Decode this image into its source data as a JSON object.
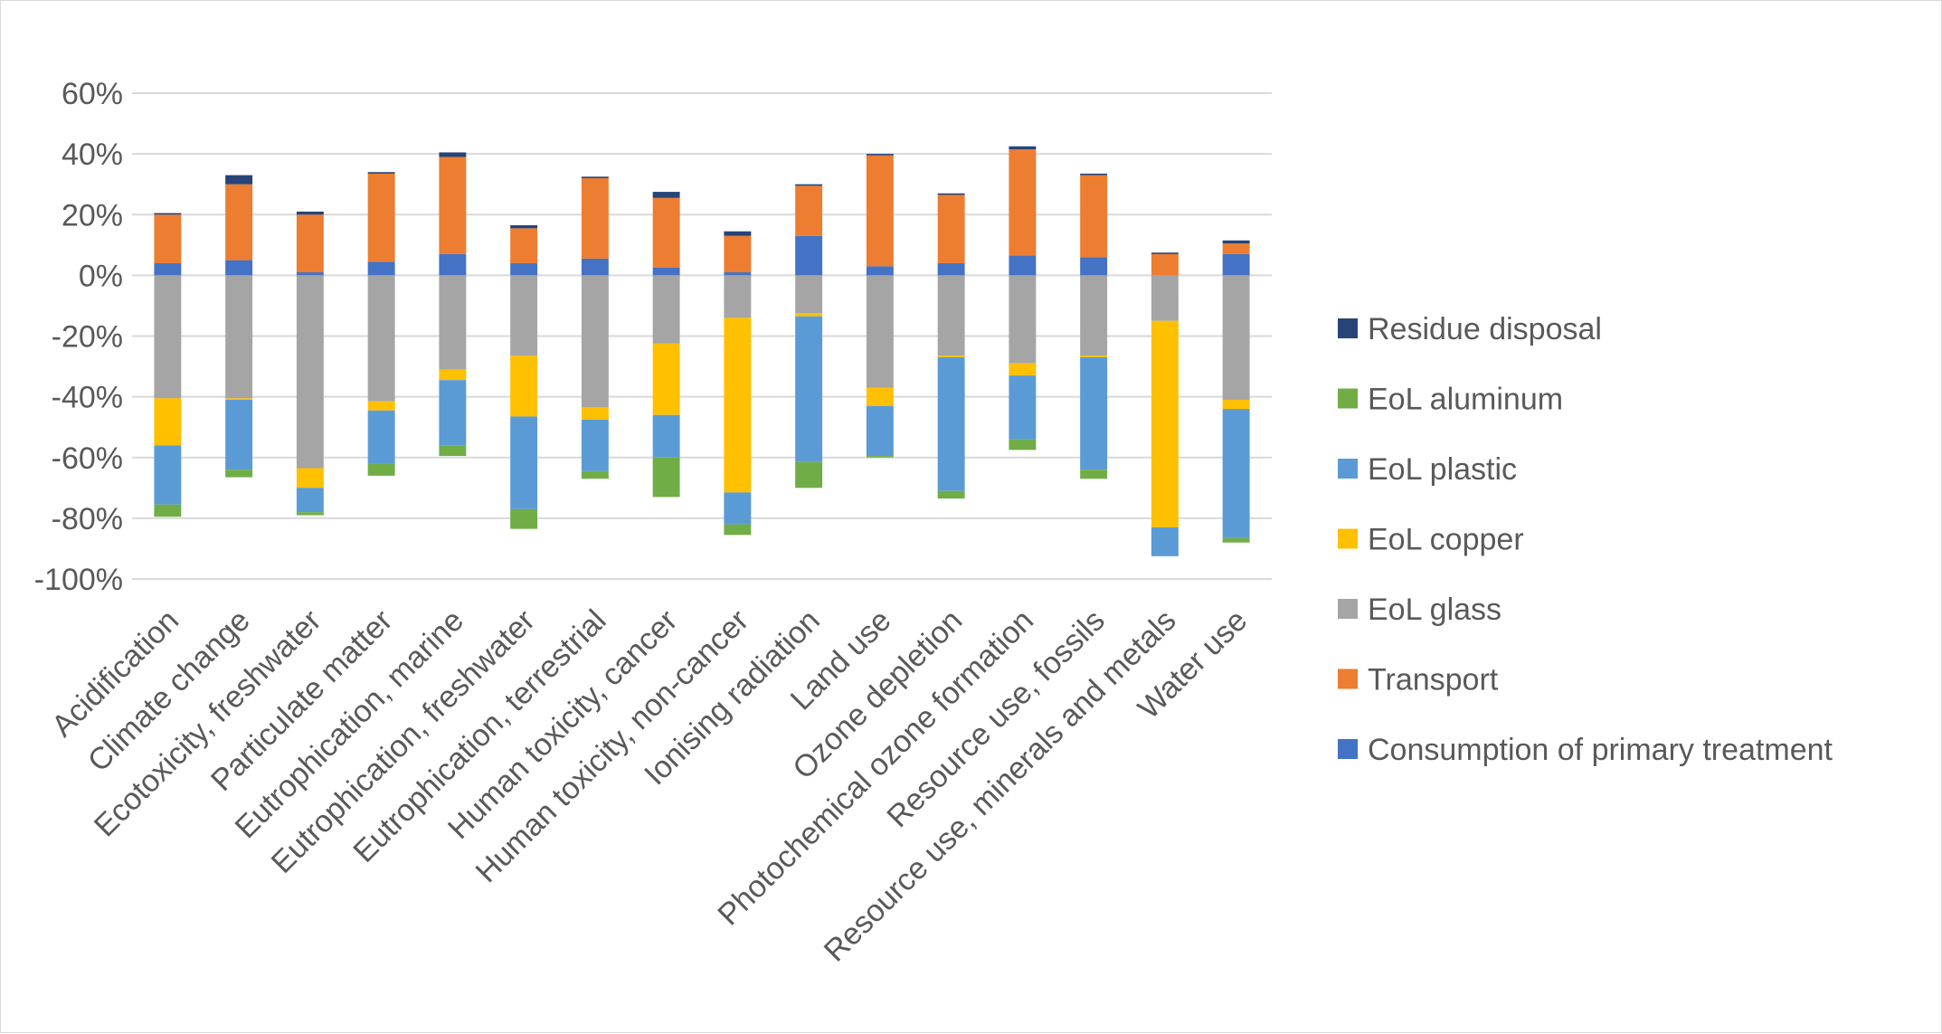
{
  "chart_data": {
    "type": "bar",
    "stacked": true,
    "title": "",
    "xlabel": "",
    "ylabel": "",
    "ylim": [
      -1.0,
      0.6
    ],
    "y_ticks": [
      0.6,
      0.4,
      0.2,
      0.0,
      -0.2,
      -0.4,
      -0.6,
      -0.8,
      -1.0
    ],
    "y_tick_labels": [
      "60%",
      "40%",
      "20%",
      "0%",
      "-20%",
      "-40%",
      "-60%",
      "-80%",
      "-100%"
    ],
    "grid": true,
    "legend_position": "right",
    "categories": [
      "Acidification",
      "Climate change",
      "Ecotoxicity, freshwater",
      "Particulate matter",
      "Eutrophication, marine",
      "Eutrophication, freshwater",
      "Eutrophication, terrestrial",
      "Human toxicity, cancer",
      "Human toxicity, non-cancer",
      "Ionising radiation",
      "Land use",
      "Ozone depletion",
      "Photochemical ozone formation",
      "Resource use, fossils",
      "Resource use, minerals and metals",
      "Water use"
    ],
    "series": [
      {
        "name": "Consumption of primary treatment",
        "color": "#4472C4",
        "values": [
          0.04,
          0.05,
          0.01,
          0.045,
          0.07,
          0.04,
          0.055,
          0.025,
          0.01,
          0.13,
          0.03,
          0.04,
          0.065,
          0.06,
          0.0,
          0.07
        ]
      },
      {
        "name": "Transport",
        "color": "#ED7D31",
        "values": [
          0.16,
          0.25,
          0.19,
          0.29,
          0.32,
          0.115,
          0.265,
          0.23,
          0.12,
          0.165,
          0.365,
          0.225,
          0.35,
          0.27,
          0.07,
          0.035
        ]
      },
      {
        "name": "EoL glass",
        "color": "#A5A5A5",
        "values": [
          -0.405,
          -0.405,
          -0.635,
          -0.415,
          -0.31,
          -0.265,
          -0.435,
          -0.225,
          -0.14,
          -0.125,
          -0.37,
          -0.265,
          -0.29,
          -0.265,
          -0.15,
          -0.41
        ]
      },
      {
        "name": "EoL copper",
        "color": "#FFC000",
        "values": [
          -0.155,
          -0.005,
          -0.065,
          -0.03,
          -0.035,
          -0.2,
          -0.04,
          -0.235,
          -0.575,
          -0.01,
          -0.06,
          -0.005,
          -0.04,
          -0.005,
          -0.68,
          -0.03
        ]
      },
      {
        "name": "EoL plastic",
        "color": "#5B9BD5",
        "values": [
          -0.195,
          -0.23,
          -0.08,
          -0.175,
          -0.215,
          -0.305,
          -0.17,
          -0.14,
          -0.105,
          -0.48,
          -0.165,
          -0.44,
          -0.21,
          -0.37,
          -0.095,
          -0.425
        ]
      },
      {
        "name": "EoL aluminum",
        "color": "#70AD47",
        "values": [
          -0.04,
          -0.025,
          -0.01,
          -0.04,
          -0.035,
          -0.065,
          -0.025,
          -0.13,
          -0.035,
          -0.085,
          -0.005,
          -0.025,
          -0.035,
          -0.03,
          0.0,
          -0.015
        ]
      },
      {
        "name": "Residue disposal",
        "color": "#264478",
        "values": [
          0.005,
          0.03,
          0.01,
          0.005,
          0.015,
          0.01,
          0.005,
          0.02,
          0.015,
          0.005,
          0.005,
          0.005,
          0.01,
          0.005,
          0.005,
          0.01
        ]
      }
    ]
  }
}
